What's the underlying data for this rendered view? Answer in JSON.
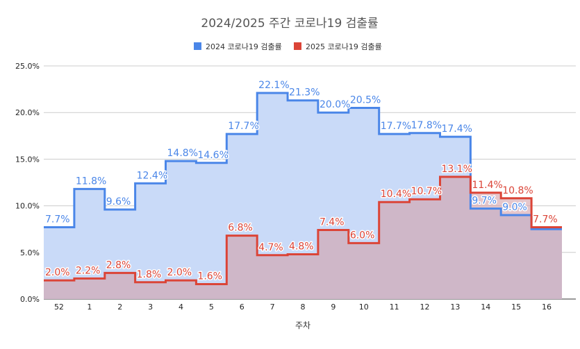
{
  "chart_data": {
    "type": "area",
    "step": true,
    "title": "2024/2025 주간 코로나19 검출률",
    "xlabel": "주차",
    "ylabel": "",
    "ylim": [
      0,
      25
    ],
    "yticks": [
      "0.0%",
      "5.0%",
      "10.0%",
      "15.0%",
      "20.0%",
      "25.0%"
    ],
    "categories": [
      "52",
      "1",
      "2",
      "3",
      "4",
      "5",
      "6",
      "7",
      "8",
      "9",
      "10",
      "11",
      "12",
      "13",
      "14",
      "15",
      "16"
    ],
    "legend_position": "top",
    "grid": true,
    "series": [
      {
        "name": "2024 코로나19 검출률",
        "color": "#4a86e8",
        "fill": "#c9daf8",
        "values": [
          7.7,
          11.8,
          9.6,
          12.4,
          14.8,
          14.6,
          17.7,
          22.1,
          21.3,
          20.0,
          20.5,
          17.7,
          17.8,
          17.4,
          9.7,
          9.0,
          7.5
        ],
        "labels": [
          "7.7%",
          "11.8%",
          "9.6%",
          "12.4%",
          "14.8%",
          "14.6%",
          "17.7%",
          "22.1%",
          "21.3%",
          "20.0%",
          "20.5%",
          "17.7%",
          "17.8%",
          "17.4%",
          "9.7%",
          "9.0%",
          ""
        ]
      },
      {
        "name": "2025 코로나19 검출률",
        "color": "#db4437",
        "fill": "#d4a0a8",
        "values": [
          2.0,
          2.2,
          2.8,
          1.8,
          2.0,
          1.6,
          6.8,
          4.7,
          4.8,
          7.4,
          6.0,
          10.4,
          10.7,
          13.1,
          11.4,
          10.8,
          7.7
        ],
        "labels": [
          "2.0%",
          "2.2%",
          "2.8%",
          "1.8%",
          "2.0%",
          "1.6%",
          "6.8%",
          "4.7%",
          "4.8%",
          "7.4%",
          "6.0%",
          "10.4%",
          "10.7%",
          "13.1%",
          "11.4%",
          "10.8%",
          "7.7%"
        ]
      }
    ]
  }
}
